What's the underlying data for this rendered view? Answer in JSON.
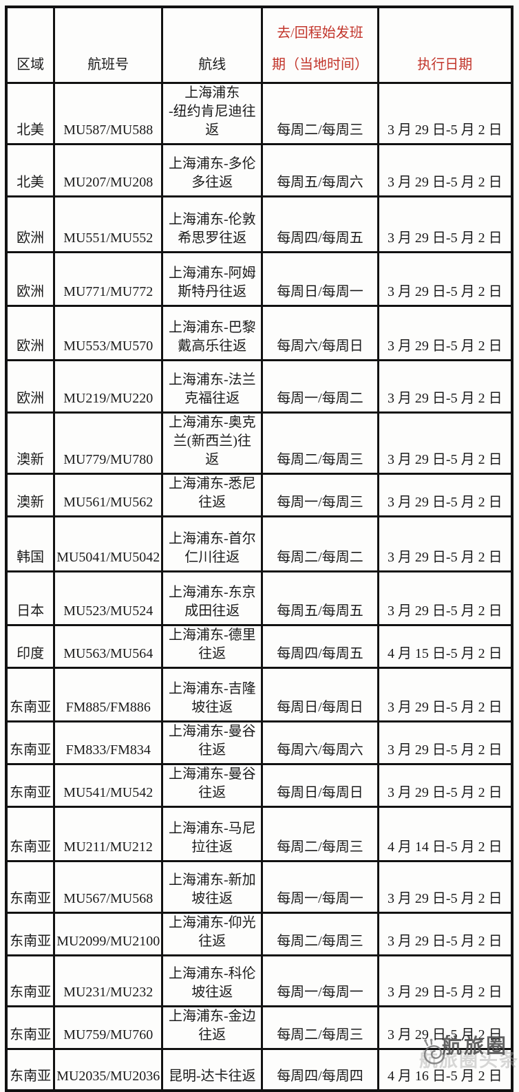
{
  "table": {
    "columns": [
      {
        "label": "区域",
        "accent": false
      },
      {
        "label": "航班号",
        "accent": false
      },
      {
        "label": "航线",
        "accent": false
      },
      {
        "label": "去/回程始发班\n期（当地时间）",
        "accent": true
      },
      {
        "label": "执行日期",
        "accent": true
      }
    ],
    "rows": [
      {
        "region": "北美",
        "flight_no": "MU587/MU588",
        "route": "上海浦东\n-纽约肯尼迪往\n返",
        "schedule": "每周二/每周三",
        "dates": "3 月 29 日-5 月 2 日"
      },
      {
        "region": "北美",
        "flight_no": "MU207/MU208",
        "route": "上海浦东-多伦\n多往返",
        "schedule": "每周五/每周六",
        "dates": "3 月 29 日-5 月 2 日"
      },
      {
        "region": "欧洲",
        "flight_no": "MU551/MU552",
        "route": "上海浦东-伦敦\n希思罗往返",
        "schedule": "每周四/每周五",
        "dates": "3 月 29 日-5 月 2 日"
      },
      {
        "region": "欧洲",
        "flight_no": "MU771/MU772",
        "route": "上海浦东-阿姆\n斯特丹往返",
        "schedule": "每周日/每周一",
        "dates": "3 月 29 日-5 月 2 日"
      },
      {
        "region": "欧洲",
        "flight_no": "MU553/MU570",
        "route": "上海浦东-巴黎\n戴高乐往返",
        "schedule": "每周六/每周日",
        "dates": "3 月 29 日-5 月 2 日"
      },
      {
        "region": "欧洲",
        "flight_no": "MU219/MU220",
        "route": "上海浦东-法兰\n克福往返",
        "schedule": "每周一/每周二",
        "dates": "3 月 29 日-5 月 2 日"
      },
      {
        "region": "澳新",
        "flight_no": "MU779/MU780",
        "route": "上海浦东-奥克\n兰(新西兰)往\n返",
        "schedule": "每周二/每周三",
        "dates": "3 月 29 日-5 月 2 日"
      },
      {
        "region": "澳新",
        "flight_no": "MU561/MU562",
        "route": "上海浦东-悉尼\n往返",
        "schedule": "每周一/每周三",
        "dates": "3 月 29 日-5 月 2 日"
      },
      {
        "region": "韩国",
        "flight_no": "MU5041/MU5042",
        "route": "上海浦东-首尔\n仁川往返",
        "schedule": "每周二/每周二",
        "dates": "3 月 29 日-5 月 2 日"
      },
      {
        "region": "日本",
        "flight_no": "MU523/MU524",
        "route": "上海浦东-东京\n成田往返",
        "schedule": "每周五/每周五",
        "dates": "3 月 29 日-5 月 2 日"
      },
      {
        "region": "印度",
        "flight_no": "MU563/MU564",
        "route": "上海浦东-德里\n往返",
        "schedule": "每周四/每周五",
        "dates": "4 月 15 日-5 月 2 日"
      },
      {
        "region": "东南亚",
        "flight_no": "FM885/FM886",
        "route": "上海浦东-吉隆\n坡往返",
        "schedule": "每周日/每周日",
        "dates": "3 月 29 日-5 月 2 日"
      },
      {
        "region": "东南亚",
        "flight_no": "FM833/FM834",
        "route": "上海浦东-曼谷\n往返",
        "schedule": "每周六/每周六",
        "dates": "3 月 29 日-5 月 2 日"
      },
      {
        "region": "东南亚",
        "flight_no": "MU541/MU542",
        "route": "上海浦东-曼谷\n往返",
        "schedule": "每周日/每周日",
        "dates": "3 月 29 日-5 月 2 日"
      },
      {
        "region": "东南亚",
        "flight_no": "MU211/MU212",
        "route": "上海浦东-马尼\n拉往返",
        "schedule": "每周二/每周三",
        "dates": "4 月 14 日-5 月 2 日"
      },
      {
        "region": "东南亚",
        "flight_no": "MU567/MU568",
        "route": "上海浦东-新加\n坡往返",
        "schedule": "每周一/每周一",
        "dates": "3 月 29 日-5 月 2 日"
      },
      {
        "region": "东南亚",
        "flight_no": "MU2099/MU2100",
        "route": "上海浦东-仰光\n往返",
        "schedule": "每周二/每周三",
        "dates": "3 月 29 日-5 月 2 日"
      },
      {
        "region": "东南亚",
        "flight_no": "MU231/MU232",
        "route": "上海浦东-科伦\n坡往返",
        "schedule": "每周一/每周一",
        "dates": "3 月 29 日-5 月 2 日"
      },
      {
        "region": "东南亚",
        "flight_no": "MU759/MU760",
        "route": "上海浦东-金边\n往返",
        "schedule": "每周二/每周三",
        "dates": "3 月 29 日-5 月 2 日"
      },
      {
        "region": "东南亚",
        "flight_no": "MU2035/MU2036",
        "route": "昆明-达卡往返",
        "schedule": "每周四/每周四",
        "dates": "4 月 16 日-5 月 2 日"
      }
    ]
  },
  "watermark": {
    "text": "航旅圈",
    "shadow_text": "航旅圈头条",
    "logo": "snail-spiral-icon"
  },
  "colors": {
    "header_accent": "#c2352b",
    "body_text": "#1b1b1b",
    "border": "#111111",
    "watermark_gray": "#4d4d4d"
  }
}
